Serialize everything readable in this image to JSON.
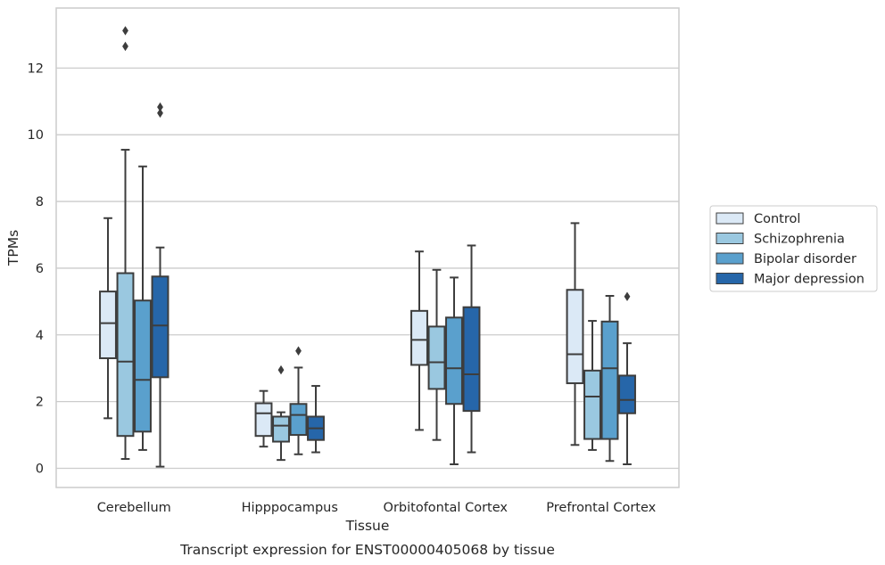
{
  "chart_data": {
    "type": "box",
    "title": "",
    "caption": "Transcript expression for ENST00000405068 by tissue",
    "xlabel": "Tissue",
    "ylabel": "TPMs",
    "ylim": [
      -0.6,
      13.9
    ],
    "yticks": [
      0,
      2,
      4,
      6,
      8,
      10,
      12
    ],
    "grid": "horizontal",
    "legend_position": "right",
    "categories": [
      "Cerebellum",
      "Hipppocampus",
      "Orbitofontal Cortex",
      "Prefrontal Cortex"
    ],
    "series": [
      {
        "name": "Control",
        "color": "#dbe9f6",
        "boxes": [
          {
            "whislo": 1.5,
            "q1": 3.3,
            "med": 4.35,
            "q3": 5.3,
            "whishi": 7.5,
            "fliers": []
          },
          {
            "whislo": 0.65,
            "q1": 0.97,
            "med": 1.65,
            "q3": 1.95,
            "whishi": 2.32,
            "fliers": []
          },
          {
            "whislo": 1.15,
            "q1": 3.1,
            "med": 3.85,
            "q3": 4.72,
            "whishi": 6.5,
            "fliers": []
          },
          {
            "whislo": 0.7,
            "q1": 2.55,
            "med": 3.42,
            "q3": 5.35,
            "whishi": 7.35,
            "fliers": []
          }
        ]
      },
      {
        "name": "Schizophrenia",
        "color": "#9ac8e0",
        "boxes": [
          {
            "whislo": 0.28,
            "q1": 0.97,
            "med": 3.2,
            "q3": 5.85,
            "whishi": 9.55,
            "fliers": [
              12.65,
              13.12
            ]
          },
          {
            "whislo": 0.25,
            "q1": 0.8,
            "med": 1.28,
            "q3": 1.55,
            "whishi": 1.68,
            "fliers": [
              2.95
            ]
          },
          {
            "whislo": 0.85,
            "q1": 2.38,
            "med": 3.18,
            "q3": 4.25,
            "whishi": 5.95,
            "fliers": []
          },
          {
            "whislo": 0.55,
            "q1": 0.88,
            "med": 2.15,
            "q3": 2.93,
            "whishi": 4.42,
            "fliers": []
          }
        ]
      },
      {
        "name": "Bipolar disorder",
        "color": "#5aa0cd",
        "boxes": [
          {
            "whislo": 0.55,
            "q1": 1.1,
            "med": 2.65,
            "q3": 5.03,
            "whishi": 9.05,
            "fliers": []
          },
          {
            "whislo": 0.42,
            "q1": 1.0,
            "med": 1.6,
            "q3": 1.93,
            "whishi": 3.02,
            "fliers": [
              3.52
            ]
          },
          {
            "whislo": 0.12,
            "q1": 1.93,
            "med": 3.0,
            "q3": 4.52,
            "whishi": 5.72,
            "fliers": []
          },
          {
            "whislo": 0.22,
            "q1": 0.88,
            "med": 3.0,
            "q3": 4.4,
            "whishi": 5.17,
            "fliers": []
          }
        ]
      },
      {
        "name": "Major depression",
        "color": "#2666a9",
        "boxes": [
          {
            "whislo": 0.05,
            "q1": 2.73,
            "med": 4.28,
            "q3": 5.75,
            "whishi": 6.62,
            "fliers": [
              10.65,
              10.83
            ]
          },
          {
            "whislo": 0.48,
            "q1": 0.85,
            "med": 1.2,
            "q3": 1.55,
            "whishi": 2.47,
            "fliers": []
          },
          {
            "whislo": 0.48,
            "q1": 1.72,
            "med": 2.82,
            "q3": 4.83,
            "whishi": 6.68,
            "fliers": []
          },
          {
            "whislo": 0.12,
            "q1": 1.65,
            "med": 2.05,
            "q3": 2.78,
            "whishi": 3.75,
            "fliers": [
              5.15
            ]
          }
        ]
      }
    ]
  }
}
